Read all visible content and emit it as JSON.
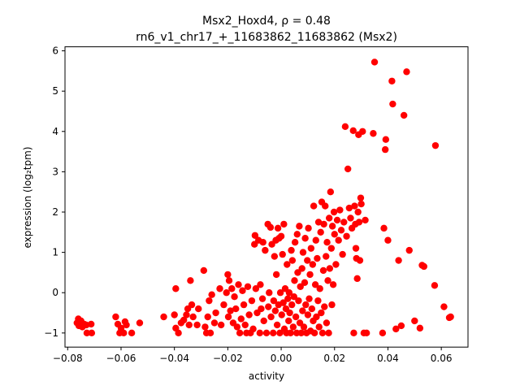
{
  "chart_data": {
    "type": "scatter",
    "title_line1": "Msx2_Hoxd4, ρ = 0.48",
    "title_line2": "rn6_v1_chr17_+_11683862_11683862 (Msx2)",
    "xlabel": "activity",
    "ylabel": "expression (log₂tpm)",
    "xlim": [
      -0.081,
      0.07
    ],
    "ylim": [
      -1.35,
      6.1
    ],
    "xticks": [
      -0.08,
      -0.06,
      -0.04,
      -0.02,
      0.0,
      0.02,
      0.04,
      0.06
    ],
    "xtick_labels": [
      "−0.08",
      "−0.06",
      "−0.04",
      "−0.02",
      "0.00",
      "0.02",
      "0.04",
      "0.06"
    ],
    "yticks": [
      -1,
      0,
      1,
      2,
      3,
      4,
      5,
      6
    ],
    "ytick_labels": [
      "−1",
      "0",
      "1",
      "2",
      "3",
      "4",
      "5",
      "6"
    ],
    "marker_color": "#ff0000",
    "grid": false,
    "points": [
      [
        -0.076,
        -0.65
      ],
      [
        -0.0765,
        -0.75
      ],
      [
        -0.0758,
        -0.82
      ],
      [
        -0.075,
        -0.7
      ],
      [
        -0.0745,
        -0.85
      ],
      [
        -0.0738,
        -0.78
      ],
      [
        -0.073,
        -0.8
      ],
      [
        -0.0728,
        -1.0
      ],
      [
        -0.0712,
        -0.78
      ],
      [
        -0.071,
        -1.0
      ],
      [
        -0.062,
        -0.6
      ],
      [
        -0.0612,
        -0.78
      ],
      [
        -0.0605,
        -1.0
      ],
      [
        -0.06,
        -0.88
      ],
      [
        -0.059,
        -1.0
      ],
      [
        -0.0585,
        -0.72
      ],
      [
        -0.058,
        -0.8
      ],
      [
        -0.056,
        -1.0
      ],
      [
        -0.053,
        -0.75
      ],
      [
        -0.044,
        -0.6
      ],
      [
        -0.04,
        -0.55
      ],
      [
        -0.0395,
        0.1
      ],
      [
        -0.0395,
        -0.88
      ],
      [
        -0.0385,
        -1.0
      ],
      [
        -0.0375,
        -0.75
      ],
      [
        -0.0365,
        -0.68
      ],
      [
        -0.0355,
        -0.55
      ],
      [
        -0.035,
        -0.4
      ],
      [
        -0.0345,
        -0.8
      ],
      [
        -0.034,
        0.3
      ],
      [
        -0.0335,
        -0.3
      ],
      [
        -0.033,
        -0.6
      ],
      [
        -0.0315,
        -0.8
      ],
      [
        -0.031,
        -0.4
      ],
      [
        -0.029,
        0.55
      ],
      [
        -0.0285,
        -0.85
      ],
      [
        -0.028,
        -1.0
      ],
      [
        -0.0275,
        -0.6
      ],
      [
        -0.027,
        -0.2
      ],
      [
        -0.0265,
        -1.0
      ],
      [
        -0.026,
        -0.05
      ],
      [
        -0.025,
        -0.75
      ],
      [
        -0.0245,
        -0.5
      ],
      [
        -0.023,
        0.1
      ],
      [
        -0.0225,
        -0.8
      ],
      [
        -0.0215,
        -0.3
      ],
      [
        -0.0205,
        0.0
      ],
      [
        -0.02,
        0.45
      ],
      [
        -0.0198,
        -0.6
      ],
      [
        -0.0195,
        0.3
      ],
      [
        -0.019,
        -0.45
      ],
      [
        -0.0185,
        0.1
      ],
      [
        -0.018,
        -0.75
      ],
      [
        -0.0175,
        -0.1
      ],
      [
        -0.017,
        -0.4
      ],
      [
        -0.0165,
        -0.85
      ],
      [
        -0.016,
        0.2
      ],
      [
        -0.0155,
        -1.0
      ],
      [
        -0.015,
        -0.65
      ],
      [
        -0.0145,
        0.05
      ],
      [
        -0.014,
        -0.3
      ],
      [
        -0.0135,
        -0.8
      ],
      [
        -0.013,
        -1.0
      ],
      [
        -0.0125,
        0.15
      ],
      [
        -0.012,
        -0.55
      ],
      [
        -0.0115,
        -1.0
      ],
      [
        -0.011,
        -0.2
      ],
      [
        -0.0105,
        -0.9
      ],
      [
        -0.01,
        1.2
      ],
      [
        -0.0098,
        1.42
      ],
      [
        -0.0095,
        0.1
      ],
      [
        -0.009,
        -0.5
      ],
      [
        -0.0085,
        1.3
      ],
      [
        -0.008,
        -1.0
      ],
      [
        -0.0078,
        0.2
      ],
      [
        -0.0075,
        -0.4
      ],
      [
        -0.007,
        -0.15
      ],
      [
        -0.0068,
        1.25
      ],
      [
        -0.0065,
        -0.7
      ],
      [
        -0.006,
        1.05
      ],
      [
        -0.0055,
        -1.0
      ],
      [
        -0.005,
        1.7
      ],
      [
        -0.0048,
        -0.35
      ],
      [
        -0.0045,
        0.0
      ],
      [
        -0.004,
        1.62
      ],
      [
        -0.0038,
        -0.6
      ],
      [
        -0.0035,
        1.2
      ],
      [
        -0.003,
        -1.0
      ],
      [
        -0.0028,
        -0.2
      ],
      [
        -0.0025,
        0.9
      ],
      [
        -0.0022,
        -0.45
      ],
      [
        -0.002,
        1.3
      ],
      [
        -0.0018,
        0.45
      ],
      [
        -0.0015,
        -0.8
      ],
      [
        -0.0012,
        1.6
      ],
      [
        -0.001,
        -0.3
      ],
      [
        -0.0008,
        1.35
      ],
      [
        -0.0005,
        -1.0
      ],
      [
        -0.0003,
        0.0
      ],
      [
        0.0,
        1.4
      ],
      [
        0.0002,
        -0.55
      ],
      [
        0.0005,
        0.95
      ],
      [
        0.0008,
        -0.25
      ],
      [
        0.001,
        1.7
      ],
      [
        0.0012,
        -0.9
      ],
      [
        0.0015,
        0.1
      ],
      [
        0.0018,
        -0.4
      ],
      [
        0.002,
        -1.0
      ],
      [
        0.0022,
        0.7
      ],
      [
        0.0025,
        -0.15
      ],
      [
        0.0028,
        -0.7
      ],
      [
        0.003,
        0.0
      ],
      [
        0.0032,
        -0.5
      ],
      [
        0.0035,
        -1.0
      ],
      [
        0.0038,
        1.05
      ],
      [
        0.004,
        -0.3
      ],
      [
        0.0042,
        0.8
      ],
      [
        0.0045,
        -0.85
      ],
      [
        0.0048,
        -0.1
      ],
      [
        0.005,
        0.3
      ],
      [
        0.0052,
        1.25
      ],
      [
        0.0055,
        -0.6
      ],
      [
        0.0058,
        -1.0
      ],
      [
        0.006,
        1.45
      ],
      [
        0.0062,
        0.5
      ],
      [
        0.0065,
        -0.2
      ],
      [
        0.0068,
        1.65
      ],
      [
        0.007,
        -0.75
      ],
      [
        0.0072,
        0.15
      ],
      [
        0.0075,
        -1.0
      ],
      [
        0.0078,
        0.6
      ],
      [
        0.008,
        -0.45
      ],
      [
        0.0082,
        1.0
      ],
      [
        0.0085,
        -0.85
      ],
      [
        0.0088,
        0.25
      ],
      [
        0.009,
        1.35
      ],
      [
        0.0092,
        -0.3
      ],
      [
        0.0095,
        -1.0
      ],
      [
        0.0098,
        0.8
      ],
      [
        0.01,
        -0.55
      ],
      [
        0.0102,
        1.6
      ],
      [
        0.0105,
        -0.15
      ],
      [
        0.0108,
        0.45
      ],
      [
        0.011,
        -0.95
      ],
      [
        0.0112,
        1.1
      ],
      [
        0.0115,
        -0.4
      ],
      [
        0.0118,
        0.7
      ],
      [
        0.012,
        -0.7
      ],
      [
        0.0122,
        2.15
      ],
      [
        0.0125,
        -1.0
      ],
      [
        0.0128,
        0.2
      ],
      [
        0.013,
        1.3
      ],
      [
        0.0132,
        -0.6
      ],
      [
        0.0135,
        0.85
      ],
      [
        0.0138,
        -0.2
      ],
      [
        0.014,
        1.75
      ],
      [
        0.0142,
        -0.85
      ],
      [
        0.0145,
        0.1
      ],
      [
        0.0148,
        1.5
      ],
      [
        0.015,
        -0.5
      ],
      [
        0.0152,
        2.25
      ],
      [
        0.0155,
        -1.0
      ],
      [
        0.0158,
        0.55
      ],
      [
        0.016,
        1.7
      ],
      [
        0.0162,
        -0.35
      ],
      [
        0.0165,
        2.15
      ],
      [
        0.0168,
        0.9
      ],
      [
        0.017,
        -0.75
      ],
      [
        0.0172,
        1.25
      ],
      [
        0.0175,
        0.3
      ],
      [
        0.0178,
        -1.0
      ],
      [
        0.018,
        1.85
      ],
      [
        0.0182,
        0.6
      ],
      [
        0.0185,
        2.5
      ],
      [
        0.0188,
        1.1
      ],
      [
        0.019,
        -0.3
      ],
      [
        0.0192,
        1.65
      ],
      [
        0.0195,
        0.2
      ],
      [
        0.0198,
        2.0
      ],
      [
        0.02,
        1.45
      ],
      [
        0.0205,
        0.7
      ],
      [
        0.021,
        1.8
      ],
      [
        0.0215,
        1.3
      ],
      [
        0.022,
        2.05
      ],
      [
        0.0225,
        1.55
      ],
      [
        0.023,
        0.95
      ],
      [
        0.0235,
        1.75
      ],
      [
        0.024,
        4.12
      ],
      [
        0.0245,
        1.4
      ],
      [
        0.025,
        3.07
      ],
      [
        0.0255,
        2.1
      ],
      [
        0.026,
        1.85
      ],
      [
        0.0265,
        1.6
      ],
      [
        0.027,
        4.02
      ],
      [
        0.0272,
        -1.0
      ],
      [
        0.0275,
        2.15
      ],
      [
        0.0278,
        1.7
      ],
      [
        0.028,
        1.1
      ],
      [
        0.0282,
        0.85
      ],
      [
        0.0285,
        0.35
      ],
      [
        0.0288,
        2.0
      ],
      [
        0.029,
        3.92
      ],
      [
        0.0292,
        1.75
      ],
      [
        0.0295,
        0.8
      ],
      [
        0.0298,
        2.35
      ],
      [
        0.03,
        2.2
      ],
      [
        0.0305,
        4.0
      ],
      [
        0.031,
        -1.0
      ],
      [
        0.0315,
        1.8
      ],
      [
        0.032,
        -1.0
      ],
      [
        0.035,
        5.72
      ],
      [
        0.0345,
        3.95
      ],
      [
        0.038,
        -1.0
      ],
      [
        0.0385,
        1.6
      ],
      [
        0.039,
        3.55
      ],
      [
        0.0392,
        3.8
      ],
      [
        0.04,
        1.3
      ],
      [
        0.0415,
        5.25
      ],
      [
        0.0418,
        4.68
      ],
      [
        0.043,
        -0.9
      ],
      [
        0.044,
        0.8
      ],
      [
        0.045,
        -0.82
      ],
      [
        0.046,
        4.4
      ],
      [
        0.047,
        5.48
      ],
      [
        0.048,
        1.05
      ],
      [
        0.05,
        -0.7
      ],
      [
        0.052,
        -0.88
      ],
      [
        0.0528,
        0.68
      ],
      [
        0.0535,
        0.65
      ],
      [
        0.0575,
        0.18
      ],
      [
        0.0578,
        3.65
      ],
      [
        0.061,
        -0.35
      ],
      [
        0.063,
        -0.62
      ],
      [
        0.0635,
        -0.6
      ]
    ]
  }
}
